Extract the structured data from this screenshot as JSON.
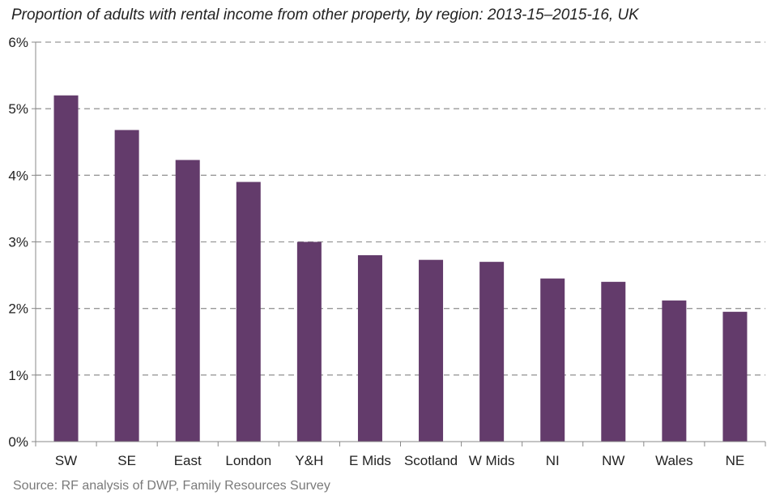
{
  "title": "Proportion of adults with rental income from other property, by region: 2013-15–2015-16, UK",
  "source": "Source: RF analysis of DWP, Family Resources Survey",
  "colors": {
    "bar": "#633b6b",
    "grid": "#999999",
    "axis": "#888888"
  },
  "chart_data": {
    "type": "bar",
    "title": "Proportion of adults with rental income from other property, by region: 2013-15–2015-16, UK",
    "categories": [
      "SW",
      "SE",
      "East",
      "London",
      "Y&H",
      "E Mids",
      "Scotland",
      "W Mids",
      "NI",
      "NW",
      "Wales",
      "NE"
    ],
    "values": [
      5.2,
      4.68,
      4.23,
      3.9,
      3.0,
      2.8,
      2.73,
      2.7,
      2.45,
      2.4,
      2.12,
      1.95
    ],
    "ylim": [
      0,
      6
    ],
    "yticks": [
      0,
      1,
      2,
      3,
      4,
      5,
      6
    ],
    "ytick_labels": [
      "0%",
      "1%",
      "2%",
      "3%",
      "4%",
      "5%",
      "6%"
    ],
    "grid": "dashed horizontal",
    "xlabel": "",
    "ylabel": ""
  }
}
